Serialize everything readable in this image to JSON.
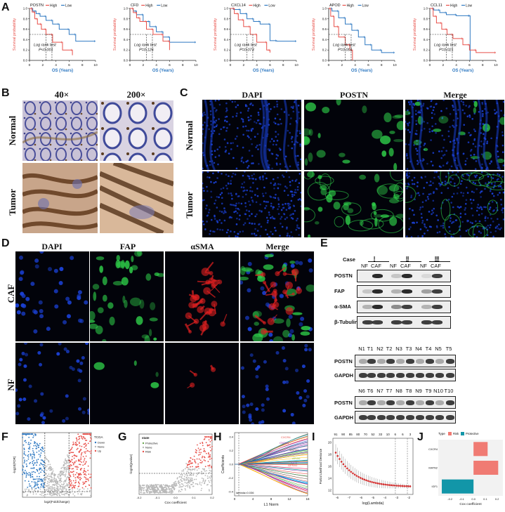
{
  "panels": {
    "A": "A",
    "B": "B",
    "C": "C",
    "D": "D",
    "E": "E",
    "F": "F",
    "G": "G",
    "H": "H",
    "I": "I",
    "J": "J"
  },
  "colors": {
    "high": "#e8504a",
    "low": "#2f79c2",
    "fluor_blue": "#1a3fd0",
    "fluor_green": "#2fd04a",
    "fluor_red": "#e02020",
    "jpos": "#f07b73",
    "jneg": "#1296a8"
  },
  "km_plots": [
    {
      "gene": "POSTN",
      "high": "High",
      "low": "Low",
      "test": "Log rank test",
      "p": "P<0.001",
      "ylabel": "Survival probability",
      "xlabel": "OS (Years)",
      "xticks": [
        "0",
        "2",
        "4",
        "6",
        "8",
        "10"
      ]
    },
    {
      "gene": "CFD",
      "high": "High",
      "low": "Low",
      "test": "Log rank test",
      "p": "P=0.126",
      "ylabel": "Survival probability",
      "xlabel": "OS (Years)",
      "xticks": [
        "0",
        "2",
        "4",
        "6",
        "8",
        "10"
      ]
    },
    {
      "gene": "CXCL14",
      "high": "High",
      "low": "Low",
      "test": "Log rank test",
      "p": "P=0.073",
      "ylabel": "Survival probability",
      "xlabel": "OS (Years)",
      "xticks": [
        "0",
        "2",
        "4",
        "6",
        "8",
        "10"
      ]
    },
    {
      "gene": "APOD",
      "high": "High",
      "low": "Low",
      "test": "Log rank test",
      "p": "P=0.001",
      "ylabel": "Survival probability",
      "xlabel": "OS (Years)",
      "xticks": [
        "0",
        "2",
        "4",
        "6",
        "8",
        "10"
      ]
    },
    {
      "gene": "CCL11",
      "high": "High",
      "low": "Low",
      "test": "Log rank test",
      "p": "P=0.021",
      "ylabel": "Survival probability",
      "xlabel": "OS (Years)",
      "xticks": [
        "0",
        "2",
        "4",
        "6",
        "8",
        "10"
      ]
    }
  ],
  "km_yticks": [
    "0.0",
    "0.2",
    "0.4",
    "0.6",
    "0.8",
    "1.0"
  ],
  "ihc": {
    "mag1": "40×",
    "mag2": "200×",
    "row1": "Normal",
    "row2": "Tumor"
  },
  "if_c": {
    "col1": "DAPI",
    "col2": "POSTN",
    "col3": "Merge",
    "row1": "Normal",
    "row2": "Tumor"
  },
  "if_d": {
    "col1": "DAPI",
    "col2": "FAP",
    "col3": "αSMA",
    "col4": "Merge",
    "row1": "CAF",
    "row2": "NF"
  },
  "wb_e": {
    "case": "Case",
    "cases": [
      "I",
      "II",
      "III"
    ],
    "lanes": [
      "NF",
      "CAF",
      "NF",
      "CAF",
      "NF",
      "CAF"
    ],
    "proteins": [
      "POSTN",
      "FAP",
      "α-SMA",
      "β-Tubulin"
    ],
    "lanes_top": [
      "N1",
      "T1",
      "N2",
      "T2",
      "N3",
      "T3",
      "N4",
      "T4",
      "N5",
      "T5"
    ],
    "lanes_bottom": [
      "N6",
      "T6",
      "N7",
      "T7",
      "N8",
      "T8",
      "N9",
      "T9",
      "N10",
      "T10"
    ],
    "tissue_proteins": [
      "POSTN",
      "GAPDH"
    ]
  },
  "volcano_f": {
    "legend_title": "TCGA",
    "legend": [
      "Down",
      "None",
      "Up"
    ],
    "xlabel": "log2(FoldChange)",
    "ylabel": "-log10(FDR)"
  },
  "volcano_g": {
    "legend_title": "state",
    "legend": [
      "Protective",
      "None",
      "Risk"
    ],
    "xlabel": "Cox coefficient",
    "ylabel": "-log10(pvalue)",
    "xticks": [
      "-0.2",
      "-0.1",
      "0.0",
      "0.1",
      "0.2"
    ]
  },
  "lasso_h": {
    "xlabel": "L1 Norm",
    "ylabel": "Coefficients",
    "xticks": [
      "0",
      "4",
      "8",
      "12",
      "16"
    ],
    "yticks": [
      "0.4",
      "0.2",
      "0.0",
      "-0.2",
      "-0.4"
    ],
    "annotation": "lambda=0.036",
    "genes": [
      "CXCR4",
      "CNTN1",
      "MATN2",
      "APOD",
      "IGF1",
      "GFRA1"
    ]
  },
  "cv_i": {
    "top_numbers": [
      "91",
      "90",
      "85",
      "80",
      "70",
      "52",
      "33",
      "10",
      "6",
      "6",
      "3"
    ],
    "xlabel": "log(Lambda)",
    "ylabel": "Partial Likelihood Deviance",
    "xticks": [
      "-6",
      "-7",
      "-6",
      "-5",
      "-4",
      "-3",
      "-2"
    ],
    "yticks": [
      "20",
      "18",
      "16",
      "14",
      "12"
    ]
  },
  "coef_j": {
    "legend_title": "Type",
    "legend": [
      "Risk",
      "Protective"
    ],
    "genes": [
      "CXCR4",
      "MATN2",
      "IGF1"
    ],
    "values": [
      0.12,
      0.21,
      -0.27
    ],
    "xlabel": "Cox coefficient",
    "xticks": [
      "-0.2",
      "-0.1",
      "0.0",
      "0.1",
      "0.2"
    ]
  }
}
